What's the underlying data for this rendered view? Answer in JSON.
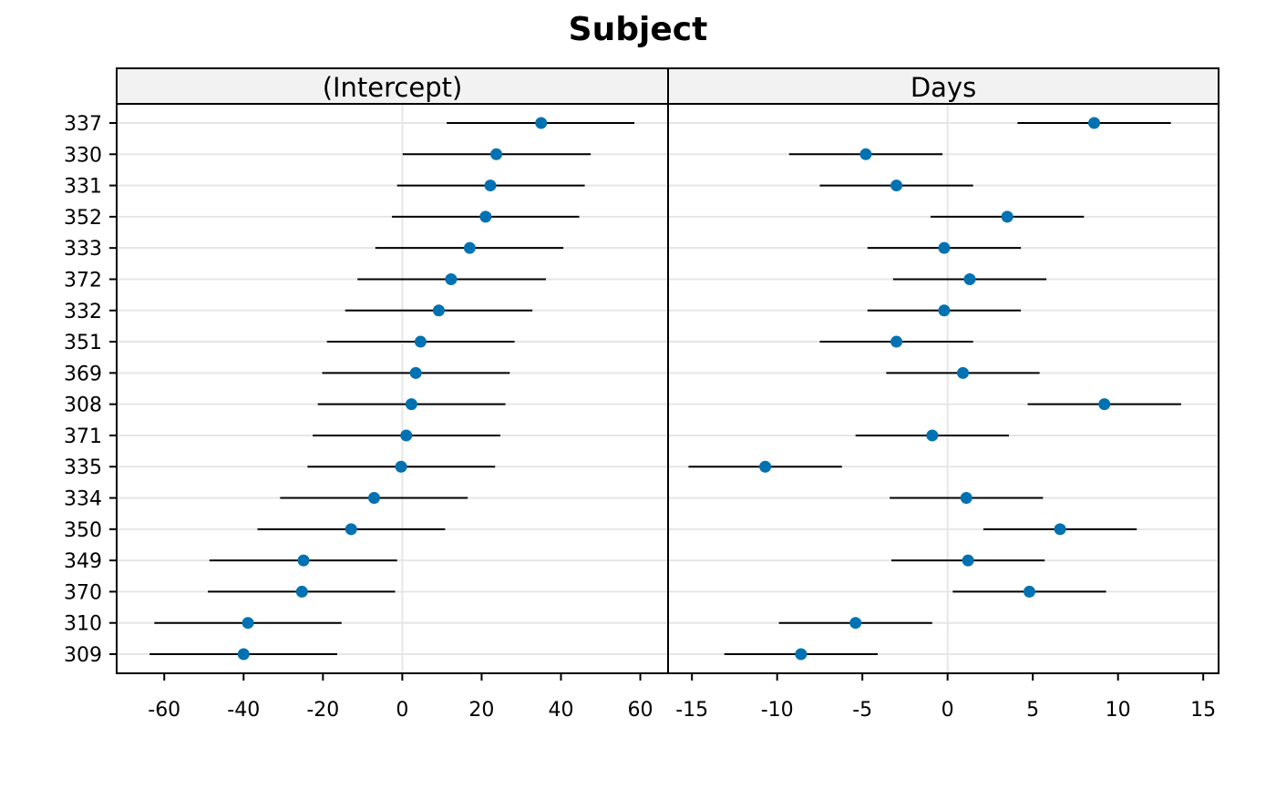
{
  "chart_data": {
    "type": "dotplot-interval",
    "title": "Subject",
    "row_labels": [
      "337",
      "330",
      "331",
      "352",
      "333",
      "372",
      "332",
      "351",
      "369",
      "308",
      "371",
      "335",
      "334",
      "350",
      "349",
      "370",
      "310",
      "309"
    ],
    "point_color": "#0072B2",
    "panels": [
      {
        "name": "(Intercept)",
        "xlim": [
          -72,
          67
        ],
        "xticks": [
          -60,
          -40,
          -20,
          0,
          20,
          40,
          60
        ],
        "xtick_labels": [
          "-60",
          "-40",
          "-20",
          "0",
          "20",
          "40",
          "60"
        ],
        "points": [
          {
            "label": "337",
            "value": 35.0,
            "lower": 11.2,
            "upper": 58.5
          },
          {
            "label": "330",
            "value": 23.7,
            "lower": 0.1,
            "upper": 47.5
          },
          {
            "label": "331",
            "value": 22.2,
            "lower": -1.3,
            "upper": 46.0
          },
          {
            "label": "352",
            "value": 21.0,
            "lower": -2.6,
            "upper": 44.6
          },
          {
            "label": "333",
            "value": 17.0,
            "lower": -6.8,
            "upper": 40.6
          },
          {
            "label": "372",
            "value": 12.3,
            "lower": -11.3,
            "upper": 36.2
          },
          {
            "label": "332",
            "value": 9.2,
            "lower": -14.4,
            "upper": 32.8
          },
          {
            "label": "351",
            "value": 4.6,
            "lower": -19.0,
            "upper": 28.3
          },
          {
            "label": "369",
            "value": 3.4,
            "lower": -20.2,
            "upper": 27.1
          },
          {
            "label": "308",
            "value": 2.3,
            "lower": -21.3,
            "upper": 26.0
          },
          {
            "label": "371",
            "value": 1.0,
            "lower": -22.6,
            "upper": 24.7
          },
          {
            "label": "335",
            "value": -0.3,
            "lower": -23.9,
            "upper": 23.4
          },
          {
            "label": "334",
            "value": -7.1,
            "lower": -30.8,
            "upper": 16.5
          },
          {
            "label": "350",
            "value": -12.9,
            "lower": -36.5,
            "upper": 10.8
          },
          {
            "label": "349",
            "value": -24.9,
            "lower": -48.6,
            "upper": -1.3
          },
          {
            "label": "370",
            "value": -25.3,
            "lower": -49.0,
            "upper": -1.8
          },
          {
            "label": "310",
            "value": -38.9,
            "lower": -62.5,
            "upper": -15.3
          },
          {
            "label": "309",
            "value": -40.0,
            "lower": -63.7,
            "upper": -16.4
          }
        ]
      },
      {
        "name": "Days",
        "xlim": [
          -16.4,
          15.9
        ],
        "xticks": [
          -15,
          -10,
          -5,
          0,
          5,
          10,
          15
        ],
        "xtick_labels": [
          "-15",
          "-10",
          "-5",
          "0",
          "5",
          "10",
          "15"
        ],
        "points": [
          {
            "label": "337",
            "value": 8.6,
            "lower": 4.1,
            "upper": 13.1
          },
          {
            "label": "330",
            "value": -4.8,
            "lower": -9.3,
            "upper": -0.3
          },
          {
            "label": "331",
            "value": -3.0,
            "lower": -7.5,
            "upper": 1.5
          },
          {
            "label": "352",
            "value": 3.5,
            "lower": -1.0,
            "upper": 8.0
          },
          {
            "label": "333",
            "value": -0.2,
            "lower": -4.7,
            "upper": 4.3
          },
          {
            "label": "372",
            "value": 1.3,
            "lower": -3.2,
            "upper": 5.8
          },
          {
            "label": "332",
            "value": -0.2,
            "lower": -4.7,
            "upper": 4.3
          },
          {
            "label": "351",
            "value": -3.0,
            "lower": -7.5,
            "upper": 1.5
          },
          {
            "label": "369",
            "value": 0.9,
            "lower": -3.6,
            "upper": 5.4
          },
          {
            "label": "308",
            "value": 9.2,
            "lower": 4.7,
            "upper": 13.7
          },
          {
            "label": "371",
            "value": -0.9,
            "lower": -5.4,
            "upper": 3.6
          },
          {
            "label": "335",
            "value": -10.7,
            "lower": -15.2,
            "upper": -6.2
          },
          {
            "label": "334",
            "value": 1.1,
            "lower": -3.4,
            "upper": 5.6
          },
          {
            "label": "350",
            "value": 6.6,
            "lower": 2.1,
            "upper": 11.1
          },
          {
            "label": "349",
            "value": 1.2,
            "lower": -3.3,
            "upper": 5.7
          },
          {
            "label": "370",
            "value": 4.8,
            "lower": 0.3,
            "upper": 9.3
          },
          {
            "label": "310",
            "value": -5.4,
            "lower": -9.9,
            "upper": -0.9
          },
          {
            "label": "309",
            "value": -8.6,
            "lower": -13.1,
            "upper": -4.1
          }
        ]
      }
    ]
  }
}
